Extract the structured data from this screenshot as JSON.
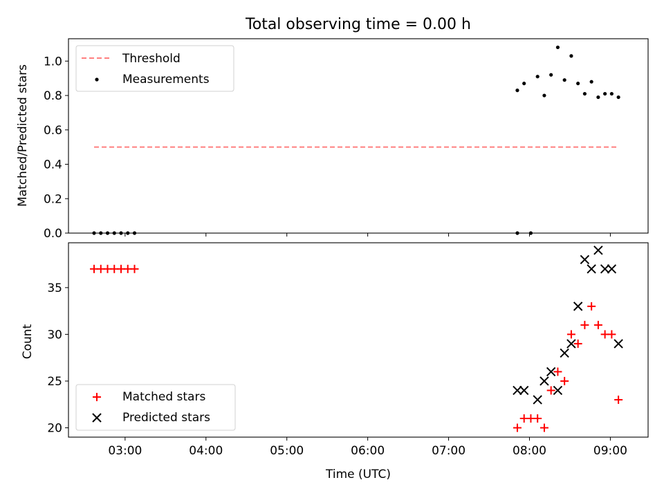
{
  "chart_data": [
    {
      "type": "scatter",
      "title": "Total observing time = 0.00 h",
      "xlabel": "",
      "ylabel": "Matched/Predicted stars",
      "xlim": [
        "02:18",
        "09:28"
      ],
      "ylim": [
        0,
        1.13
      ],
      "yticks": [
        0.0,
        0.2,
        0.4,
        0.6,
        0.8,
        1.0
      ],
      "ytick_labels": [
        "0.0",
        "0.2",
        "0.4",
        "0.6",
        "0.8",
        "1.0"
      ],
      "legend_position": "upper-left",
      "series": [
        {
          "name": "Threshold",
          "style": "dashed-line",
          "color": "#ff7f7f",
          "x": [
            "02:37",
            "09:06"
          ],
          "y": [
            0.5,
            0.5
          ]
        },
        {
          "name": "Measurements",
          "style": "dot",
          "color": "#000000",
          "x": [
            "02:37",
            "02:42",
            "02:47",
            "02:52",
            "02:57",
            "03:02",
            "03:07",
            "07:51",
            "07:51",
            "07:56",
            "08:01",
            "08:06",
            "08:11",
            "08:16",
            "08:21",
            "08:26",
            "08:31",
            "08:36",
            "08:41",
            "08:46",
            "08:51",
            "08:56",
            "09:01",
            "09:06"
          ],
          "y": [
            0,
            0,
            0,
            0,
            0,
            0,
            0,
            0,
            0.83,
            0.87,
            0,
            0.91,
            0.8,
            0.92,
            1.08,
            0.89,
            1.03,
            0.87,
            0.81,
            0.88,
            0.79,
            0.81,
            0.81,
            0.79
          ]
        }
      ]
    },
    {
      "type": "scatter",
      "title": "",
      "xlabel": "Time (UTC)",
      "ylabel": "Count",
      "xlim": [
        "02:18",
        "09:28"
      ],
      "ylim": [
        19,
        39.8
      ],
      "xticks": [
        "03:00",
        "04:00",
        "05:00",
        "06:00",
        "07:00",
        "08:00",
        "09:00"
      ],
      "yticks": [
        20,
        25,
        30,
        35
      ],
      "ytick_labels": [
        "20",
        "25",
        "30",
        "35"
      ],
      "legend_position": "lower-left",
      "series": [
        {
          "name": "Matched stars",
          "marker": "plus",
          "color": "#ff0000",
          "x": [
            "02:37",
            "02:42",
            "02:47",
            "02:52",
            "02:57",
            "03:02",
            "03:07",
            "07:51",
            "07:56",
            "08:01",
            "08:06",
            "08:11",
            "08:16",
            "08:21",
            "08:26",
            "08:31",
            "08:36",
            "08:41",
            "08:46",
            "08:51",
            "08:56",
            "09:01",
            "09:06"
          ],
          "y": [
            37,
            37,
            37,
            37,
            37,
            37,
            37,
            20,
            21,
            21,
            21,
            20,
            24,
            26,
            25,
            30,
            29,
            31,
            33,
            31,
            30,
            30,
            23
          ]
        },
        {
          "name": "Predicted stars",
          "marker": "x",
          "color": "#000000",
          "x": [
            "07:51",
            "07:56",
            "08:06",
            "08:11",
            "08:16",
            "08:21",
            "08:26",
            "08:31",
            "08:36",
            "08:41",
            "08:46",
            "08:51",
            "08:56",
            "09:01",
            "09:06"
          ],
          "y": [
            24,
            24,
            23,
            25,
            26,
            24,
            28,
            29,
            33,
            38,
            37,
            39,
            37,
            37,
            29
          ]
        }
      ]
    }
  ]
}
